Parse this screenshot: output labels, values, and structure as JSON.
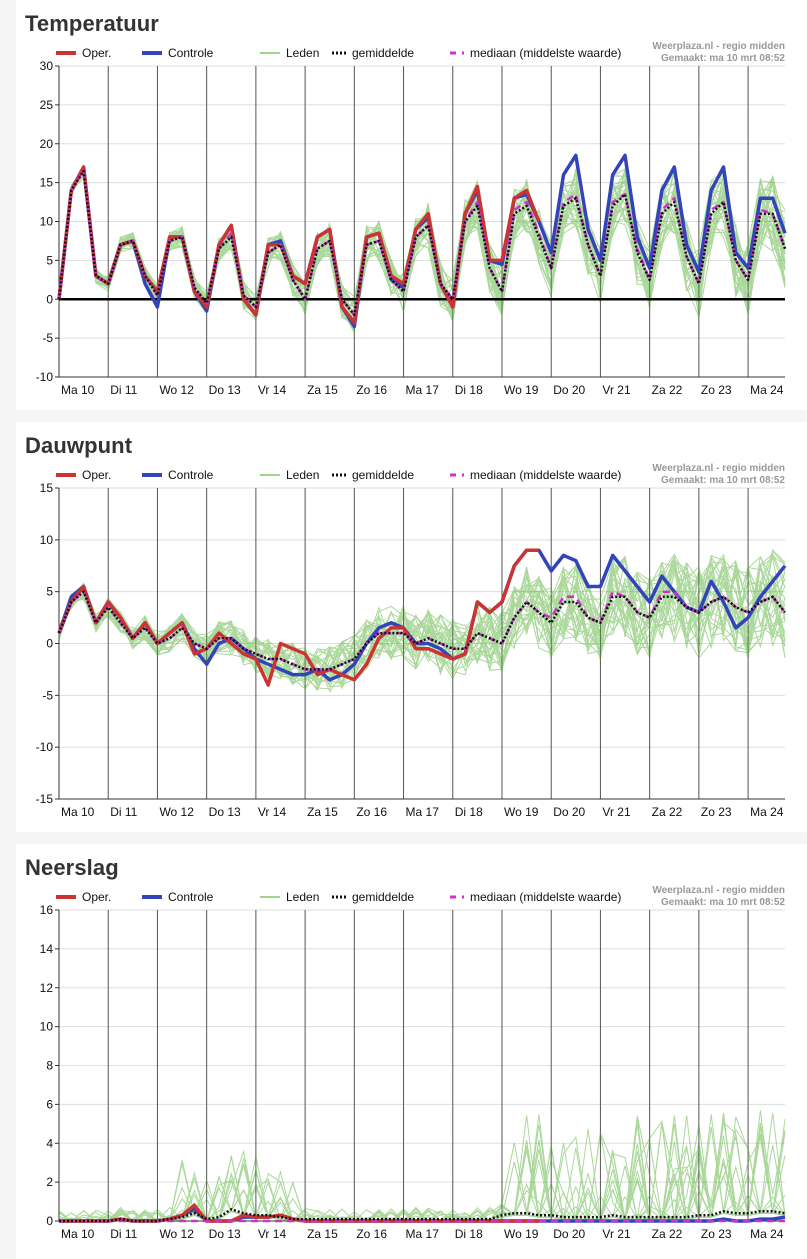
{
  "legend": {
    "oper": "Oper.",
    "controle": "Controle",
    "leden": "Leden",
    "gemiddelde": "gemiddelde",
    "mediaan": "mediaan (middelste waarde)"
  },
  "source": {
    "line1": "Weerplaza.nl - regio midden",
    "line2": "Gemaakt: ma 10 mrt 08:52"
  },
  "colors": {
    "oper": "#cc3333",
    "controle": "#3344bb",
    "leden": "#44aa22",
    "gemiddelde": "#111111",
    "mediaan": "#cc33cc",
    "grid": "#dddddd",
    "daygrid": "#555555"
  },
  "chart_data": [
    {
      "type": "line",
      "title": "Temperatuur",
      "ylim": [
        -10,
        30
      ],
      "yticks": [
        "30",
        "25",
        "20",
        "15",
        "10",
        "5",
        "0",
        "-5",
        "-10"
      ],
      "xticks": [
        "Ma 10",
        "Di 11",
        "Wo 12",
        "Do 13",
        "Vr 14",
        "Za 15",
        "Zo 16",
        "Ma 17",
        "Di 18",
        "Wo 19",
        "Do 20",
        "Vr 21",
        "Za 22",
        "Zo 23",
        "Ma 24"
      ],
      "zero_line": true,
      "series": [
        {
          "name": "Oper.",
          "values": [
            0,
            14,
            17,
            3,
            2,
            7,
            7.5,
            3,
            1,
            8,
            8,
            1,
            -1,
            7,
            9.5,
            0,
            -2,
            7,
            7,
            3,
            2,
            8,
            9,
            -1,
            -3,
            8,
            8.5,
            3,
            2,
            9,
            11,
            2,
            -1,
            11,
            14.5,
            5,
            5,
            13,
            14,
            10
          ]
        },
        {
          "name": "Controle",
          "values": [
            0,
            14,
            17,
            3,
            2,
            7,
            7.5,
            2,
            -1,
            8,
            8,
            1,
            -1.5,
            7,
            9.5,
            0,
            -2,
            7,
            7.5,
            3,
            2,
            8,
            9,
            -1,
            -3.5,
            8,
            8.5,
            2.5,
            1.5,
            9,
            10.5,
            2,
            -1,
            11,
            14,
            5,
            4.5,
            13,
            13.5,
            10,
            6,
            16,
            18.5,
            9,
            5,
            16,
            18.5,
            8,
            4,
            14,
            17,
            7,
            3.5,
            14,
            17,
            6,
            4,
            13,
            13,
            8.5
          ]
        },
        {
          "name": "gemiddelde",
          "values": [
            0,
            14,
            16.5,
            3,
            2,
            7,
            7.5,
            3,
            0.5,
            7.5,
            8,
            1.5,
            -0.5,
            6.5,
            8,
            0.5,
            -1,
            6,
            7,
            2.5,
            0,
            6.5,
            7.5,
            0,
            -2,
            7,
            7.5,
            2.5,
            1,
            8,
            9.5,
            2,
            0,
            10,
            12,
            4,
            1,
            11,
            12,
            8,
            4,
            12,
            13,
            7,
            3,
            12,
            13.5,
            6,
            2.5,
            11,
            12.5,
            5.5,
            2,
            11,
            12.5,
            5,
            2.5,
            11,
            11,
            6.5
          ]
        },
        {
          "name": "mediaan",
          "values": [
            0,
            14,
            16.5,
            3,
            2,
            7,
            7.5,
            3,
            0.5,
            7.5,
            8,
            1.5,
            -0.5,
            6.5,
            8.5,
            0.5,
            -1,
            6,
            7,
            2.5,
            0,
            6.5,
            7.5,
            0,
            -2,
            7,
            7.5,
            2.5,
            1,
            8,
            9.5,
            2,
            0,
            10,
            12.5,
            4,
            1,
            11.5,
            12.5,
            8.5,
            4,
            12.5,
            13.5,
            7,
            3,
            12.5,
            13.5,
            6.5,
            2.5,
            11.5,
            13,
            5.5,
            2,
            11.5,
            12.5,
            5,
            2.5,
            11.5,
            11,
            6.5
          ]
        }
      ]
    },
    {
      "type": "line",
      "title": "Dauwpunt",
      "ylim": [
        -15,
        15
      ],
      "yticks": [
        "15",
        "10",
        "5",
        "0",
        "-5",
        "-10",
        "-15"
      ],
      "xticks": [
        "Ma 10",
        "Di 11",
        "Wo 12",
        "Do 13",
        "Vr 14",
        "Za 15",
        "Zo 16",
        "Ma 17",
        "Di 18",
        "Wo 19",
        "Do 20",
        "Vr 21",
        "Za 22",
        "Zo 23",
        "Ma 24"
      ],
      "zero_line": false,
      "series": [
        {
          "name": "Oper.",
          "values": [
            1,
            4,
            5.5,
            2,
            4,
            2.5,
            0.5,
            2,
            0,
            1,
            2,
            -1,
            -0.5,
            1,
            0,
            -1,
            -1.5,
            -4,
            0,
            -0.5,
            -1,
            -3,
            -2.5,
            -3,
            -3.5,
            -2,
            0.5,
            1.5,
            1.5,
            -0.5,
            -0.5,
            -1,
            -1.5,
            -1,
            4,
            3,
            4,
            7.5,
            9,
            9
          ]
        },
        {
          "name": "Controle",
          "values": [
            1,
            4.5,
            5.5,
            2,
            4,
            2.5,
            0.5,
            2,
            0,
            1,
            2,
            -0.5,
            -2,
            0,
            0.5,
            -0.5,
            -1.5,
            -2,
            -2.5,
            -3,
            -3,
            -2.5,
            -3.5,
            -3,
            -2,
            0,
            1.5,
            2,
            1.5,
            0,
            0,
            -0.5,
            -1.5,
            -1,
            4,
            3,
            4,
            7.5,
            9,
            9,
            7,
            8.5,
            8,
            5.5,
            5.5,
            8.5,
            7,
            5.5,
            4,
            6.5,
            5,
            3.5,
            3,
            6,
            4,
            1.5,
            2.5,
            4.5,
            6,
            7.5
          ]
        },
        {
          "name": "gemiddelde",
          "values": [
            1,
            4,
            5,
            2,
            3.5,
            2,
            0.5,
            1.5,
            0,
            0.5,
            1.5,
            0,
            -0.5,
            0.5,
            0.5,
            -0.5,
            -1,
            -1.5,
            -1.5,
            -2,
            -2.5,
            -2.5,
            -2.5,
            -2,
            -1.5,
            0,
            1,
            1,
            1,
            0,
            0.5,
            0,
            -0.5,
            -0.5,
            1,
            0.5,
            0,
            2.5,
            4,
            3,
            2,
            4,
            4,
            2.5,
            2,
            4.5,
            4.5,
            3,
            2.5,
            4.5,
            4.5,
            3.5,
            3,
            4,
            4.5,
            3.5,
            3,
            4,
            4.5,
            3
          ]
        },
        {
          "name": "mediaan",
          "values": [
            1,
            4,
            5,
            2,
            3.5,
            2,
            0.5,
            1.5,
            0,
            0.5,
            1.5,
            0,
            -0.5,
            0.5,
            0.5,
            -0.5,
            -1,
            -1.5,
            -1.5,
            -2,
            -2.5,
            -2.5,
            -2.5,
            -2,
            -1.5,
            0,
            1,
            1,
            1,
            0,
            0.5,
            0,
            -0.5,
            -0.5,
            1,
            0.5,
            0,
            2.5,
            4,
            3,
            2.5,
            4.5,
            4.5,
            2.5,
            2,
            5,
            4.5,
            3,
            2.5,
            5,
            5,
            3.5,
            3,
            4,
            4.5,
            3.5,
            3,
            4,
            4.5,
            3
          ]
        }
      ]
    },
    {
      "type": "line",
      "title": "Neerslag",
      "ylim": [
        0,
        16
      ],
      "yticks": [
        "16",
        "14",
        "12",
        "10",
        "8",
        "6",
        "4",
        "2",
        "0"
      ],
      "xticks": [
        "Ma 10",
        "Di 11",
        "Wo 12",
        "Do 13",
        "Vr 14",
        "Za 15",
        "Zo 16",
        "Ma 17",
        "Di 18",
        "Wo 19",
        "Do 20",
        "Vr 21",
        "Za 22",
        "Zo 23",
        "Ma 24"
      ],
      "zero_line": false,
      "series": [
        {
          "name": "Oper.",
          "values": [
            0,
            0,
            0,
            0,
            0,
            0.1,
            0,
            0,
            0,
            0.1,
            0.3,
            0.8,
            0,
            0,
            0,
            0.3,
            0.2,
            0.2,
            0.3,
            0.1,
            0,
            0,
            0,
            0,
            0,
            0,
            0,
            0,
            0,
            0,
            0,
            0,
            0,
            0,
            0,
            0,
            0,
            0,
            0,
            0
          ]
        },
        {
          "name": "Controle",
          "values": [
            0,
            0,
            0,
            0,
            0,
            0.1,
            0,
            0,
            0,
            0.1,
            0.3,
            0.6,
            0,
            0,
            0,
            0.2,
            0.2,
            0.2,
            0.3,
            0.1,
            0,
            0,
            0,
            0,
            0,
            0,
            0,
            0,
            0,
            0,
            0,
            0,
            0,
            0,
            0,
            0,
            0,
            0,
            0,
            0,
            0,
            0,
            0,
            0,
            0,
            0,
            0,
            0,
            0,
            0,
            0,
            0,
            0,
            0,
            0.1,
            0,
            0,
            0.1,
            0.1,
            0.2
          ]
        },
        {
          "name": "gemiddelde",
          "values": [
            0,
            0,
            0,
            0,
            0,
            0.1,
            0,
            0,
            0,
            0.1,
            0.2,
            0.4,
            0.1,
            0.2,
            0.6,
            0.4,
            0.3,
            0.3,
            0.2,
            0.1,
            0.1,
            0.1,
            0.1,
            0.1,
            0.1,
            0.1,
            0.1,
            0.1,
            0.1,
            0.1,
            0.1,
            0.1,
            0.1,
            0.1,
            0.1,
            0.1,
            0.3,
            0.4,
            0.4,
            0.3,
            0.3,
            0.2,
            0.2,
            0.2,
            0.2,
            0.3,
            0.2,
            0.2,
            0.2,
            0.2,
            0.2,
            0.2,
            0.3,
            0.3,
            0.5,
            0.4,
            0.4,
            0.5,
            0.5,
            0.4
          ]
        },
        {
          "name": "mediaan",
          "values": [
            0,
            0,
            0,
            0,
            0,
            0,
            0,
            0,
            0,
            0,
            0,
            0,
            0,
            0,
            0,
            0,
            0,
            0,
            0,
            0,
            0,
            0,
            0,
            0,
            0,
            0,
            0,
            0,
            0,
            0,
            0,
            0,
            0,
            0,
            0,
            0,
            0,
            0,
            0,
            0,
            0,
            0,
            0,
            0,
            0,
            0,
            0,
            0,
            0,
            0,
            0,
            0,
            0,
            0,
            0,
            0,
            0,
            0,
            0,
            0
          ]
        }
      ]
    }
  ]
}
